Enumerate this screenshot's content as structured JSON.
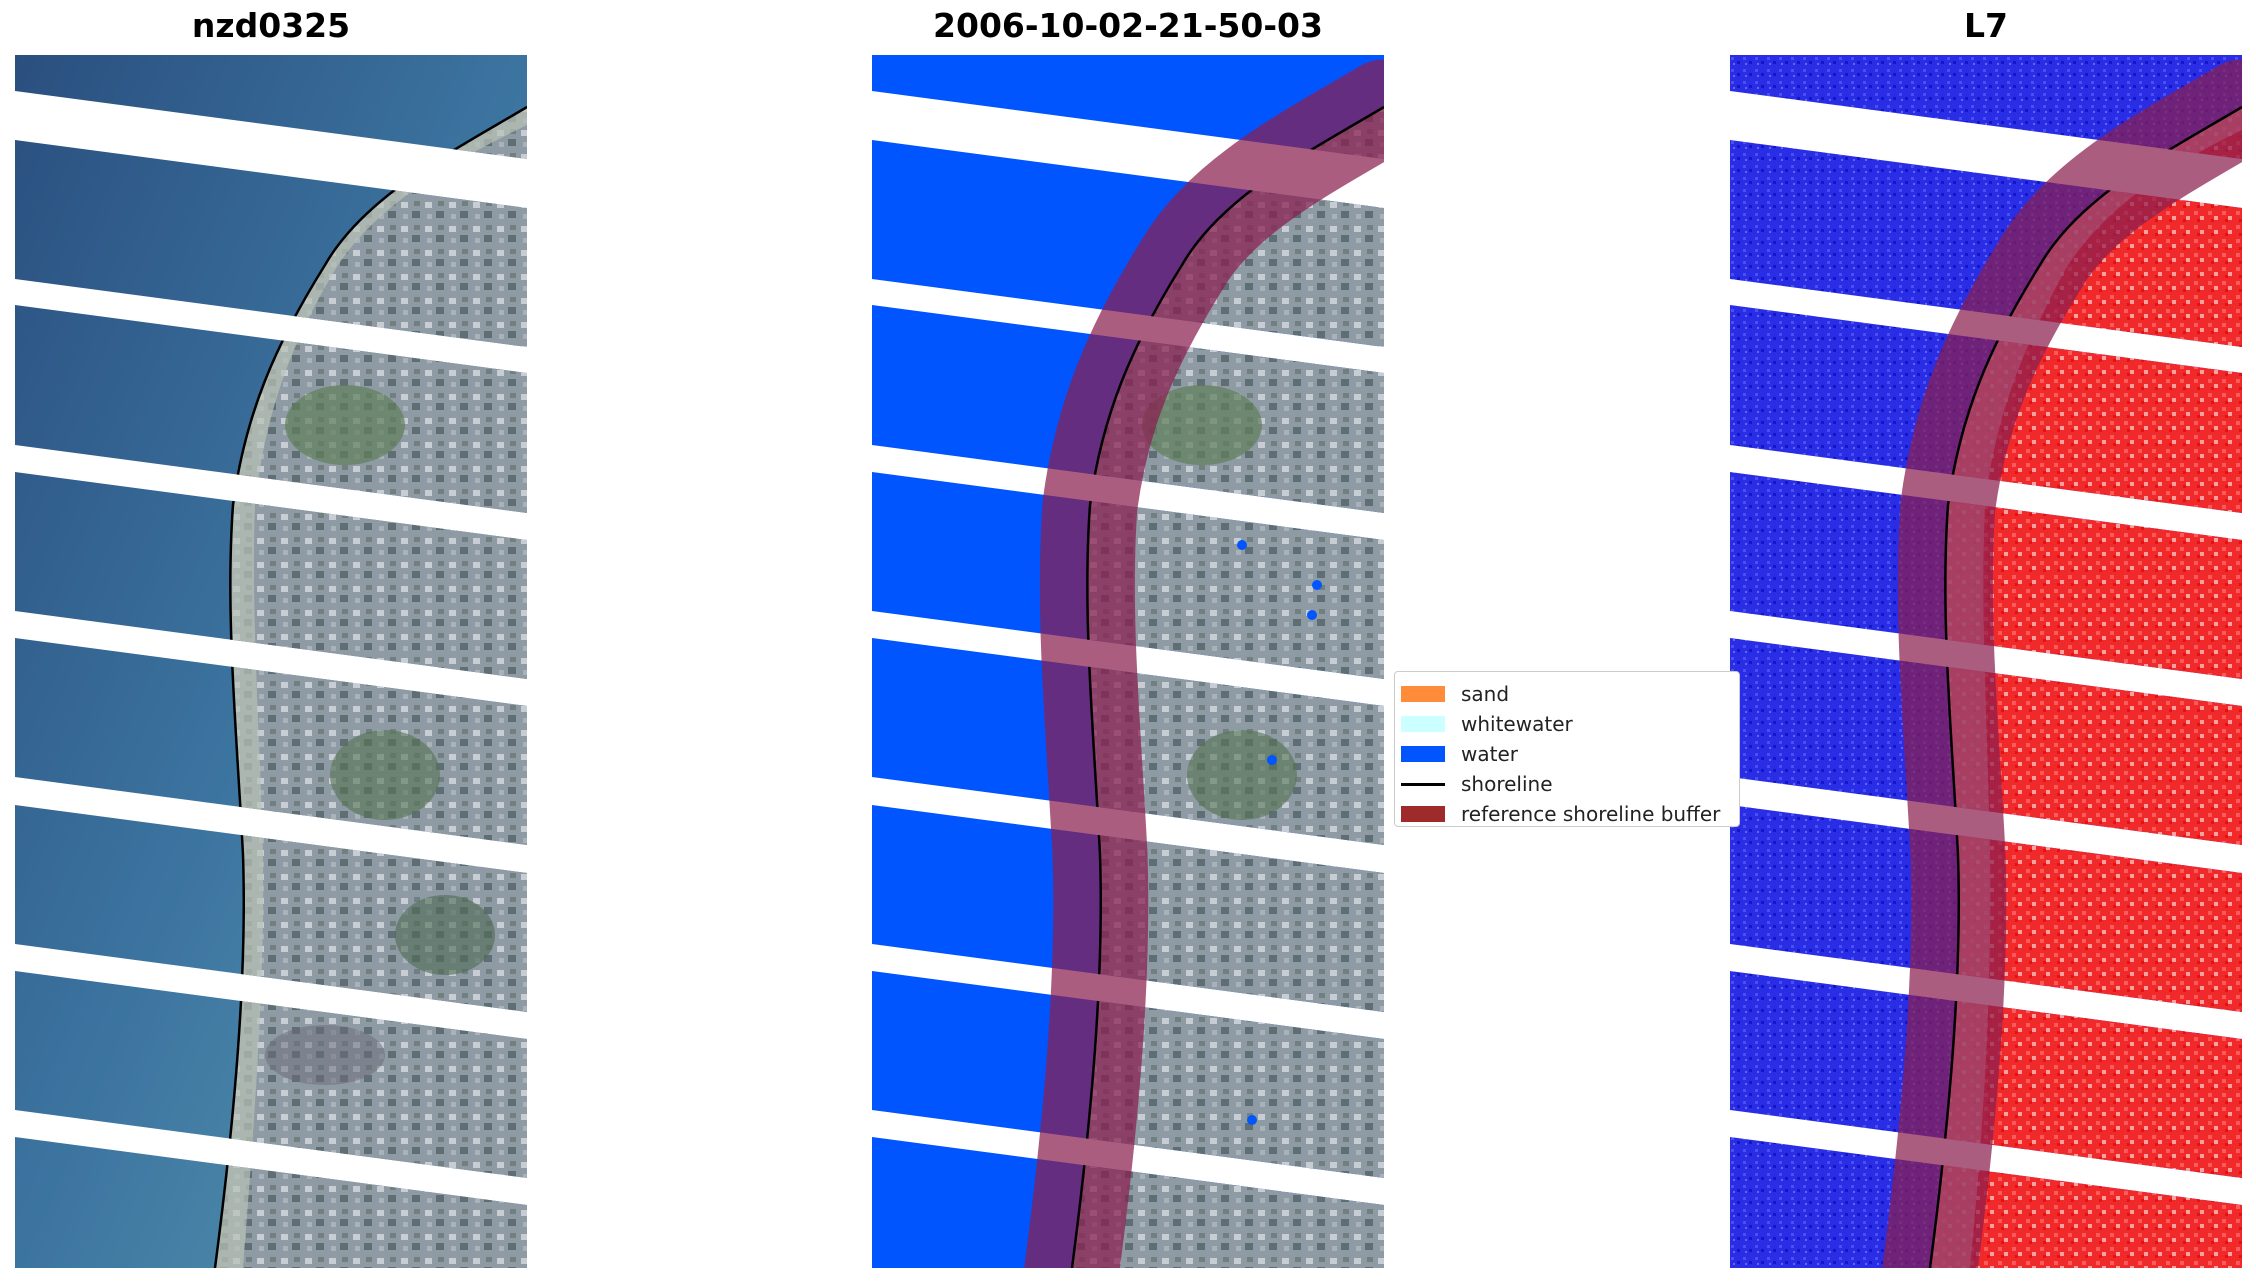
{
  "panels": [
    {
      "title": "nzd0325"
    },
    {
      "title": "2006-10-02-21-50-03"
    },
    {
      "title": "L7"
    }
  ],
  "legend": {
    "items": [
      {
        "label": "sand",
        "color": "#ff8c3b",
        "kind": "patch"
      },
      {
        "label": "whitewater",
        "color": "#ccffff",
        "kind": "patch"
      },
      {
        "label": "water",
        "color": "#0055ff",
        "kind": "patch"
      },
      {
        "label": "shoreline",
        "color": "#000000",
        "kind": "line"
      },
      {
        "label": "reference shoreline buffer",
        "color": "#9e2a2b",
        "kind": "patch"
      }
    ]
  }
}
